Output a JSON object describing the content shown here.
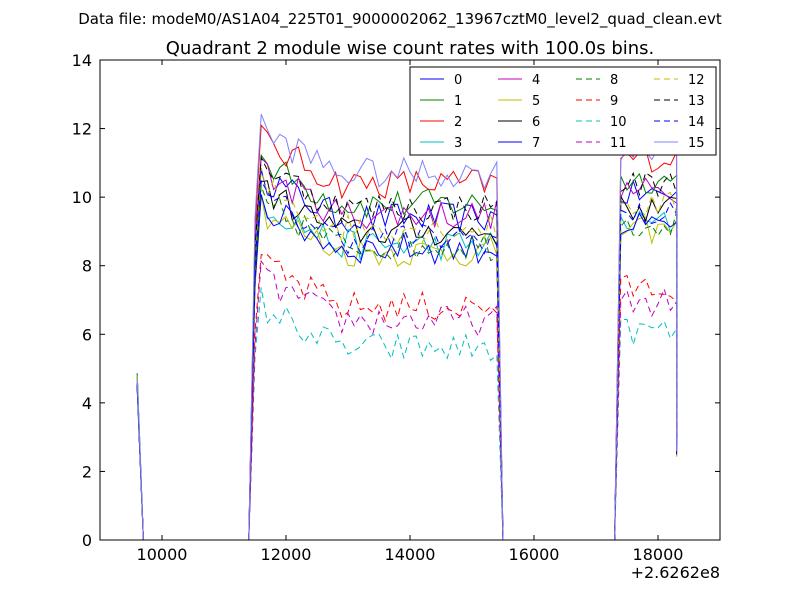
{
  "chart_data": {
    "type": "line",
    "suptitle": "Data file: modeM0/AS1A04_225T01_9000002062_13967cztM0_level2_quad_clean.evt",
    "title": "Quadrant 2 module wise count rates with 100.0s bins.",
    "xlabel": "",
    "ylabel": "",
    "x_offset_label": "+2.6262e8",
    "xlim": [
      9000,
      19000
    ],
    "ylim": [
      0,
      14
    ],
    "xticks": [
      10000,
      12000,
      14000,
      16000,
      18000
    ],
    "xtick_labels": [
      "10000",
      "12000",
      "14000",
      "16000",
      "18000"
    ],
    "yticks": [
      0,
      2,
      4,
      6,
      8,
      10,
      12,
      14
    ],
    "ytick_labels": [
      "0",
      "2",
      "4",
      "6",
      "8",
      "10",
      "12",
      "14"
    ],
    "grid": false,
    "legend_position": "top-right",
    "legend_columns": 4,
    "segments": [
      {
        "start": 9600,
        "end": 9600
      },
      {
        "start": 11600,
        "end": 15400
      },
      {
        "start": 17400,
        "end": 18300
      }
    ],
    "series": [
      {
        "name": "0",
        "color": "#0000ff",
        "dash": "solid",
        "level": 9.6
      },
      {
        "name": "1",
        "color": "#008000",
        "dash": "solid",
        "level": 10.0
      },
      {
        "name": "2",
        "color": "#ff0000",
        "dash": "solid",
        "level": 10.6
      },
      {
        "name": "3",
        "color": "#00bfbf",
        "dash": "solid",
        "level": 8.8
      },
      {
        "name": "4",
        "color": "#bf00bf",
        "dash": "solid",
        "level": 9.7
      },
      {
        "name": "5",
        "color": "#bfbf00",
        "dash": "solid",
        "level": 8.6
      },
      {
        "name": "6",
        "color": "#000000",
        "dash": "solid",
        "level": 9.2
      },
      {
        "name": "7",
        "color": "#0000ff",
        "dash": "solid",
        "level": 8.7
      },
      {
        "name": "8",
        "color": "#008000",
        "dash": "dashed",
        "level": 8.8
      },
      {
        "name": "9",
        "color": "#ff0000",
        "dash": "dashed",
        "level": 7.0
      },
      {
        "name": "10",
        "color": "#00bfbf",
        "dash": "dashed",
        "level": 5.8
      },
      {
        "name": "11",
        "color": "#bf00bf",
        "dash": "dashed",
        "level": 6.6
      },
      {
        "name": "12",
        "color": "#bfbf00",
        "dash": "dashed",
        "level": 9.3
      },
      {
        "name": "13",
        "color": "#000000",
        "dash": "dashed",
        "level": 9.9
      },
      {
        "name": "14",
        "color": "#0000ff",
        "dash": "dashed",
        "level": 9.0
      },
      {
        "name": "15",
        "color": "#8080ff",
        "dash": "solid",
        "level": 10.9
      }
    ]
  }
}
